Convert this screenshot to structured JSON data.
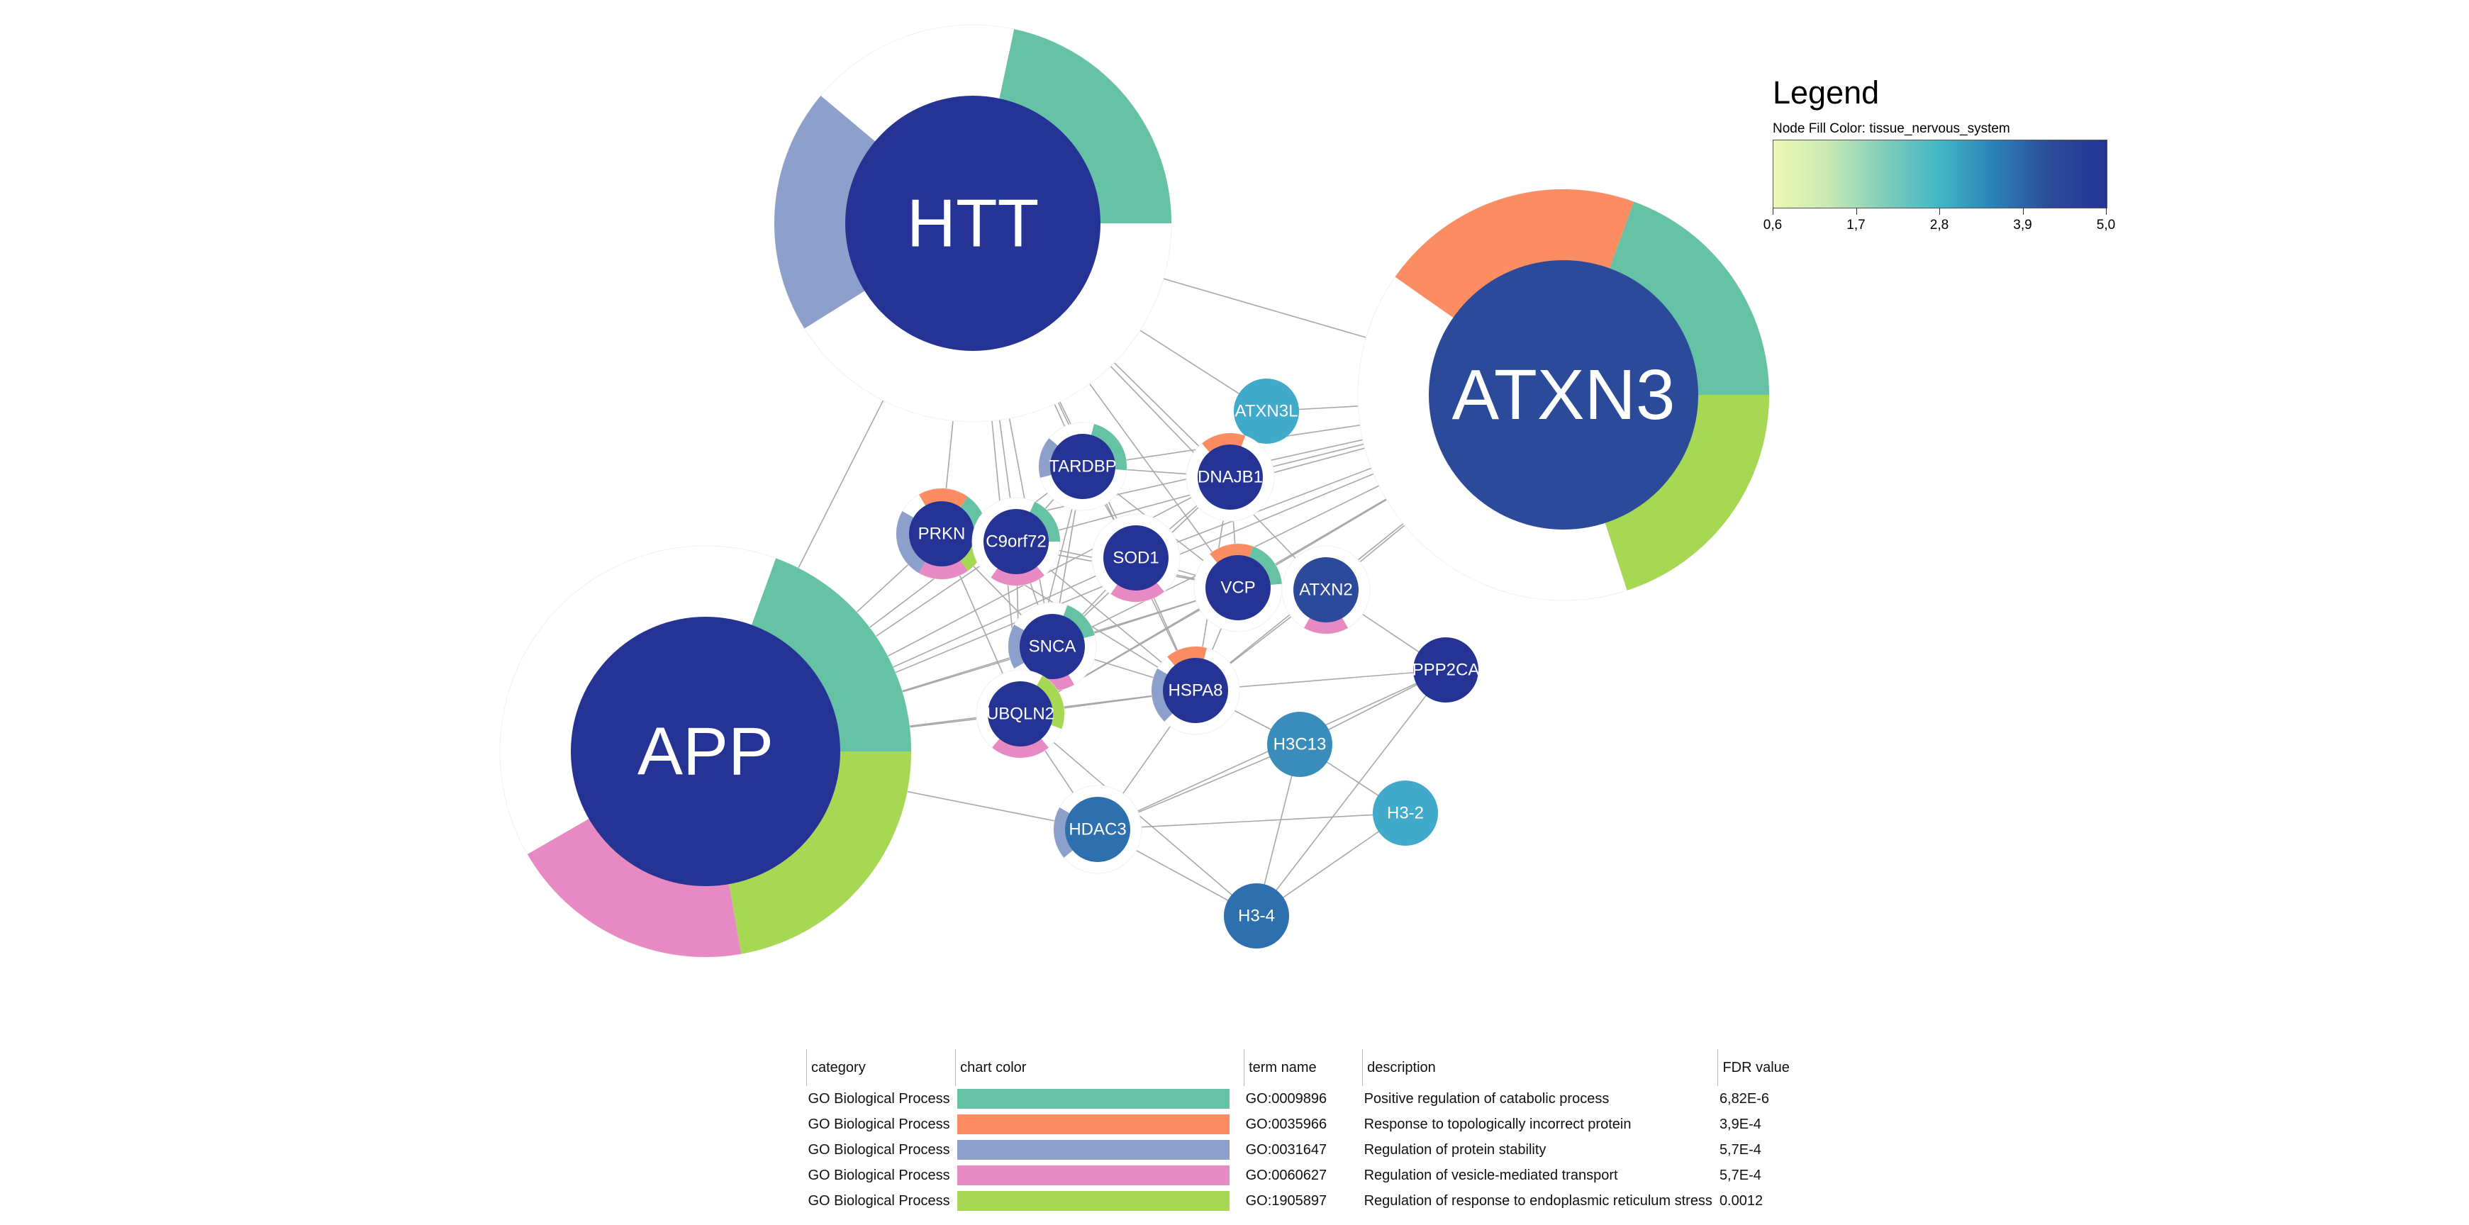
{
  "network": {
    "edge_color": "#a8a8a8",
    "nodes": [
      {
        "id": "HTT",
        "label": "HTT",
        "fill": "#253494",
        "ring_colors": [
          "#66c2a5",
          "#8da0cb"
        ]
      },
      {
        "id": "ATXN3",
        "label": "ATXN3",
        "fill": "#2c4a9a",
        "ring_colors": [
          "#fc8d62",
          "#66c2a5",
          "#a6d854"
        ]
      },
      {
        "id": "APP",
        "label": "APP",
        "fill": "#253494",
        "ring_colors": [
          "#66c2a5",
          "#a6d854",
          "#e78ac3"
        ]
      },
      {
        "id": "ATXN3L",
        "label": "ATXN3L",
        "fill": "#41a9c9",
        "ring_colors": []
      },
      {
        "id": "TARDBP",
        "label": "TARDBP",
        "fill": "#253494",
        "ring_colors": [
          "#66c2a5",
          "#8da0cb"
        ]
      },
      {
        "id": "DNAJB1",
        "label": "DNAJB1",
        "fill": "#253494",
        "ring_colors": [
          "#fc8d62"
        ]
      },
      {
        "id": "PRKN",
        "label": "PRKN",
        "fill": "#253494",
        "ring_colors": [
          "#fc8d62",
          "#66c2a5",
          "#a6d854",
          "#e78ac3",
          "#8da0cb"
        ]
      },
      {
        "id": "C9orf72",
        "label": "C9orf72",
        "fill": "#253494",
        "ring_colors": [
          "#66c2a5",
          "#e78ac3"
        ]
      },
      {
        "id": "SOD1",
        "label": "SOD1",
        "fill": "#253494",
        "ring_colors": [
          "#e78ac3"
        ]
      },
      {
        "id": "VCP",
        "label": "VCP",
        "fill": "#253494",
        "ring_colors": [
          "#fc8d62",
          "#66c2a5"
        ]
      },
      {
        "id": "ATXN2",
        "label": "ATXN2",
        "fill": "#2c4a9a",
        "ring_colors": [
          "#e78ac3"
        ]
      },
      {
        "id": "SNCA",
        "label": "SNCA",
        "fill": "#253494",
        "ring_colors": [
          "#66c2a5",
          "#e78ac3",
          "#8da0cb"
        ]
      },
      {
        "id": "HSPA8",
        "label": "HSPA8",
        "fill": "#253494",
        "ring_colors": [
          "#fc8d62",
          "#8da0cb"
        ]
      },
      {
        "id": "PPP2CA",
        "label": "PPP2CA",
        "fill": "#253494",
        "ring_colors": []
      },
      {
        "id": "UBQLN2",
        "label": "UBQLN2",
        "fill": "#253494",
        "ring_colors": [
          "#a6d854",
          "#e78ac3"
        ]
      },
      {
        "id": "H3C13",
        "label": "H3C13",
        "fill": "#3a8dba",
        "ring_colors": []
      },
      {
        "id": "H3-2",
        "label": "H3-2",
        "fill": "#41a9c9",
        "ring_colors": []
      },
      {
        "id": "HDAC3",
        "label": "HDAC3",
        "fill": "#2e6fae",
        "ring_colors": [
          "#8da0cb"
        ]
      },
      {
        "id": "H3-4",
        "label": "H3-4",
        "fill": "#2e6fae",
        "ring_colors": []
      }
    ],
    "edges": [
      [
        "HTT",
        "ATXN3"
      ],
      [
        "HTT",
        "APP"
      ],
      [
        "HTT",
        "TARDBP"
      ],
      [
        "HTT",
        "DNAJB1"
      ],
      [
        "HTT",
        "C9orf72"
      ],
      [
        "HTT",
        "SOD1"
      ],
      [
        "HTT",
        "VCP"
      ],
      [
        "HTT",
        "SNCA"
      ],
      [
        "HTT",
        "HSPA8"
      ],
      [
        "HTT",
        "PRKN"
      ],
      [
        "HTT",
        "UBQLN2"
      ],
      [
        "HTT",
        "ATXN2"
      ],
      [
        "HTT",
        "ATXN3L"
      ],
      [
        "ATXN3",
        "ATXN3L"
      ],
      [
        "ATXN3",
        "DNAJB1"
      ],
      [
        "ATXN3",
        "VCP"
      ],
      [
        "ATXN3",
        "TARDBP"
      ],
      [
        "ATXN3",
        "C9orf72"
      ],
      [
        "ATXN3",
        "SOD1"
      ],
      [
        "ATXN3",
        "SNCA"
      ],
      [
        "ATXN3",
        "HSPA8"
      ],
      [
        "ATXN3",
        "ATXN2"
      ],
      [
        "ATXN3",
        "PRKN"
      ],
      [
        "ATXN3",
        "UBQLN2"
      ],
      [
        "ATXN3",
        "APP"
      ],
      [
        "APP",
        "PRKN"
      ],
      [
        "APP",
        "C9orf72"
      ],
      [
        "APP",
        "SNCA"
      ],
      [
        "APP",
        "UBQLN2"
      ],
      [
        "APP",
        "TARDBP"
      ],
      [
        "APP",
        "SOD1"
      ],
      [
        "APP",
        "VCP"
      ],
      [
        "APP",
        "HSPA8"
      ],
      [
        "APP",
        "DNAJB1"
      ],
      [
        "APP",
        "HDAC3"
      ],
      [
        "TARDBP",
        "DNAJB1"
      ],
      [
        "TARDBP",
        "C9orf72"
      ],
      [
        "TARDBP",
        "VCP"
      ],
      [
        "TARDBP",
        "SNCA"
      ],
      [
        "TARDBP",
        "SOD1"
      ],
      [
        "TARDBP",
        "UBQLN2"
      ],
      [
        "DNAJB1",
        "HSPA8"
      ],
      [
        "DNAJB1",
        "VCP"
      ],
      [
        "DNAJB1",
        "SNCA"
      ],
      [
        "DNAJB1",
        "SOD1"
      ],
      [
        "PRKN",
        "SNCA"
      ],
      [
        "PRKN",
        "C9orf72"
      ],
      [
        "PRKN",
        "VCP"
      ],
      [
        "PRKN",
        "HSPA8"
      ],
      [
        "PRKN",
        "UBQLN2"
      ],
      [
        "C9orf72",
        "VCP"
      ],
      [
        "C9orf72",
        "SNCA"
      ],
      [
        "C9orf72",
        "UBQLN2"
      ],
      [
        "C9orf72",
        "HSPA8"
      ],
      [
        "SOD1",
        "VCP"
      ],
      [
        "SOD1",
        "SNCA"
      ],
      [
        "SOD1",
        "HSPA8"
      ],
      [
        "VCP",
        "ATXN2"
      ],
      [
        "VCP",
        "HSPA8"
      ],
      [
        "VCP",
        "SNCA"
      ],
      [
        "VCP",
        "UBQLN2"
      ],
      [
        "ATXN2",
        "HSPA8"
      ],
      [
        "SNCA",
        "HSPA8"
      ],
      [
        "SNCA",
        "UBQLN2"
      ],
      [
        "HSPA8",
        "PPP2CA"
      ],
      [
        "HSPA8",
        "H3C13"
      ],
      [
        "HSPA8",
        "HDAC3"
      ],
      [
        "HSPA8",
        "UBQLN2"
      ],
      [
        "PPP2CA",
        "H3C13"
      ],
      [
        "PPP2CA",
        "H3-4"
      ],
      [
        "PPP2CA",
        "HDAC3"
      ],
      [
        "PPP2CA",
        "ATXN2"
      ],
      [
        "H3C13",
        "H3-2"
      ],
      [
        "H3C13",
        "H3-4"
      ],
      [
        "H3C13",
        "HDAC3"
      ],
      [
        "H3-2",
        "HDAC3"
      ],
      [
        "H3-2",
        "H3-4"
      ],
      [
        "HDAC3",
        "H3-4"
      ],
      [
        "HDAC3",
        "UBQLN2"
      ],
      [
        "UBQLN2",
        "H3-4"
      ]
    ]
  },
  "legend": {
    "title": "Legend",
    "subtitle": "Node Fill Color:  tissue_nervous_system",
    "gradient_stops": [
      "#edf8b1",
      "#c7e9b4",
      "#7fcdbb",
      "#41b6c4",
      "#2c7fb8",
      "#2c4a9a",
      "#253494"
    ],
    "ticks": [
      {
        "label": "0,6",
        "value": 0.6
      },
      {
        "label": "1,7",
        "value": 1.7
      },
      {
        "label": "2,8",
        "value": 2.8
      },
      {
        "label": "3,9",
        "value": 3.9
      },
      {
        "label": "5,0",
        "value": 5.0
      }
    ]
  },
  "enrichment_table": {
    "headers": {
      "category": "category",
      "color": "chart color",
      "term": "term name",
      "description": "description",
      "fdr": "FDR value"
    },
    "rows": [
      {
        "category": "GO Biological Process",
        "color": "#66c2a5",
        "term": "GO:0009896",
        "description": "Positive regulation of catabolic process",
        "fdr": "6,82E-6"
      },
      {
        "category": "GO Biological Process",
        "color": "#fc8d62",
        "term": "GO:0035966",
        "description": "Response to topologically incorrect protein",
        "fdr": "3,9E-4"
      },
      {
        "category": "GO Biological Process",
        "color": "#8da0cb",
        "term": "GO:0031647",
        "description": "Regulation of protein stability",
        "fdr": "5,7E-4"
      },
      {
        "category": "GO Biological Process",
        "color": "#e78ac3",
        "term": "GO:0060627",
        "description": "Regulation of vesicle-mediated transport",
        "fdr": "5,7E-4"
      },
      {
        "category": "GO Biological Process",
        "color": "#a6d854",
        "term": "GO:1905897",
        "description": "Regulation of response to endoplasmic reticulum stress",
        "fdr": "0.0012"
      }
    ]
  }
}
